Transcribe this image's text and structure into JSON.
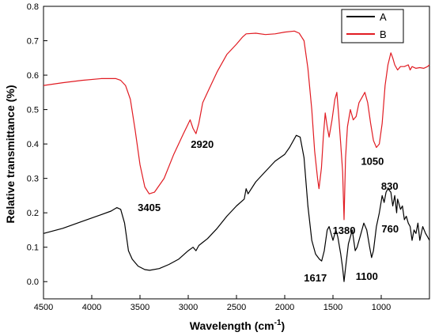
{
  "chart_data": {
    "type": "line",
    "title": "",
    "xlabel": "Wavelength (cm",
    "xlabel_sup": "-1",
    "xlabel_close": ")",
    "ylabel": "Relative transmittance (%)",
    "xlim": [
      4500,
      500
    ],
    "ylim": [
      -0.05,
      0.8
    ],
    "x_ticks": [
      {
        "value": 4500,
        "label": "4500"
      },
      {
        "value": 4000,
        "label": "4000"
      },
      {
        "value": 3500,
        "label": "3500"
      },
      {
        "value": 3000,
        "label": "3000"
      },
      {
        "value": 2500,
        "label": "2500"
      },
      {
        "value": 2000,
        "label": "2000"
      },
      {
        "value": 1500,
        "label": "1500"
      },
      {
        "value": 1000,
        "label": "1000"
      }
    ],
    "y_ticks": [
      {
        "value": 0.0,
        "label": "0.0"
      },
      {
        "value": 0.1,
        "label": "0.1"
      },
      {
        "value": 0.2,
        "label": "0.2"
      },
      {
        "value": 0.3,
        "label": "0.3"
      },
      {
        "value": 0.4,
        "label": "0.4"
      },
      {
        "value": 0.5,
        "label": "0.5"
      },
      {
        "value": 0.6,
        "label": "0.6"
      },
      {
        "value": 0.7,
        "label": "0.7"
      },
      {
        "value": 0.8,
        "label": "0.8"
      }
    ],
    "grid": false,
    "legend_position": "top-right",
    "series": [
      {
        "name": "A",
        "color": "#000000",
        "points": [
          [
            4500,
            0.14
          ],
          [
            4300,
            0.155
          ],
          [
            4100,
            0.175
          ],
          [
            3900,
            0.195
          ],
          [
            3800,
            0.205
          ],
          [
            3740,
            0.215
          ],
          [
            3700,
            0.21
          ],
          [
            3660,
            0.17
          ],
          [
            3620,
            0.09
          ],
          [
            3580,
            0.065
          ],
          [
            3520,
            0.045
          ],
          [
            3450,
            0.035
          ],
          [
            3400,
            0.033
          ],
          [
            3300,
            0.038
          ],
          [
            3200,
            0.05
          ],
          [
            3100,
            0.065
          ],
          [
            3000,
            0.09
          ],
          [
            2950,
            0.1
          ],
          [
            2920,
            0.09
          ],
          [
            2890,
            0.105
          ],
          [
            2800,
            0.125
          ],
          [
            2700,
            0.155
          ],
          [
            2600,
            0.19
          ],
          [
            2500,
            0.22
          ],
          [
            2420,
            0.24
          ],
          [
            2400,
            0.27
          ],
          [
            2380,
            0.255
          ],
          [
            2300,
            0.29
          ],
          [
            2200,
            0.32
          ],
          [
            2100,
            0.35
          ],
          [
            2000,
            0.37
          ],
          [
            1950,
            0.39
          ],
          [
            1880,
            0.425
          ],
          [
            1840,
            0.42
          ],
          [
            1800,
            0.36
          ],
          [
            1760,
            0.22
          ],
          [
            1720,
            0.12
          ],
          [
            1680,
            0.08
          ],
          [
            1640,
            0.065
          ],
          [
            1617,
            0.06
          ],
          [
            1590,
            0.09
          ],
          [
            1560,
            0.15
          ],
          [
            1540,
            0.16
          ],
          [
            1500,
            0.12
          ],
          [
            1470,
            0.15
          ],
          [
            1450,
            0.13
          ],
          [
            1420,
            0.08
          ],
          [
            1400,
            0.04
          ],
          [
            1385,
            0.0
          ],
          [
            1370,
            0.04
          ],
          [
            1340,
            0.11
          ],
          [
            1320,
            0.13
          ],
          [
            1300,
            0.15
          ],
          [
            1270,
            0.09
          ],
          [
            1250,
            0.1
          ],
          [
            1210,
            0.14
          ],
          [
            1180,
            0.17
          ],
          [
            1150,
            0.15
          ],
          [
            1120,
            0.1
          ],
          [
            1100,
            0.07
          ],
          [
            1080,
            0.09
          ],
          [
            1050,
            0.16
          ],
          [
            1020,
            0.2
          ],
          [
            990,
            0.25
          ],
          [
            970,
            0.23
          ],
          [
            950,
            0.26
          ],
          [
            930,
            0.27
          ],
          [
            900,
            0.26
          ],
          [
            880,
            0.22
          ],
          [
            860,
            0.25
          ],
          [
            840,
            0.2
          ],
          [
            830,
            0.24
          ],
          [
            800,
            0.21
          ],
          [
            780,
            0.22
          ],
          [
            760,
            0.18
          ],
          [
            740,
            0.19
          ],
          [
            720,
            0.17
          ],
          [
            700,
            0.16
          ],
          [
            680,
            0.12
          ],
          [
            660,
            0.15
          ],
          [
            640,
            0.14
          ],
          [
            620,
            0.17
          ],
          [
            600,
            0.12
          ],
          [
            570,
            0.16
          ],
          [
            540,
            0.14
          ],
          [
            520,
            0.13
          ],
          [
            500,
            0.12
          ]
        ]
      },
      {
        "name": "B",
        "color": "#e11b22",
        "points": [
          [
            4500,
            0.57
          ],
          [
            4300,
            0.578
          ],
          [
            4100,
            0.585
          ],
          [
            3900,
            0.59
          ],
          [
            3750,
            0.59
          ],
          [
            3700,
            0.585
          ],
          [
            3650,
            0.57
          ],
          [
            3600,
            0.53
          ],
          [
            3550,
            0.44
          ],
          [
            3500,
            0.34
          ],
          [
            3450,
            0.275
          ],
          [
            3405,
            0.255
          ],
          [
            3350,
            0.26
          ],
          [
            3250,
            0.3
          ],
          [
            3150,
            0.37
          ],
          [
            3050,
            0.43
          ],
          [
            2980,
            0.47
          ],
          [
            2950,
            0.445
          ],
          [
            2920,
            0.43
          ],
          [
            2890,
            0.46
          ],
          [
            2850,
            0.52
          ],
          [
            2800,
            0.55
          ],
          [
            2700,
            0.61
          ],
          [
            2600,
            0.66
          ],
          [
            2500,
            0.69
          ],
          [
            2440,
            0.71
          ],
          [
            2400,
            0.72
          ],
          [
            2300,
            0.722
          ],
          [
            2200,
            0.718
          ],
          [
            2100,
            0.72
          ],
          [
            2000,
            0.725
          ],
          [
            1900,
            0.728
          ],
          [
            1850,
            0.722
          ],
          [
            1800,
            0.7
          ],
          [
            1760,
            0.62
          ],
          [
            1720,
            0.5
          ],
          [
            1690,
            0.38
          ],
          [
            1660,
            0.3
          ],
          [
            1645,
            0.27
          ],
          [
            1620,
            0.33
          ],
          [
            1600,
            0.42
          ],
          [
            1580,
            0.49
          ],
          [
            1560,
            0.45
          ],
          [
            1540,
            0.42
          ],
          [
            1510,
            0.47
          ],
          [
            1480,
            0.53
          ],
          [
            1460,
            0.55
          ],
          [
            1440,
            0.48
          ],
          [
            1420,
            0.4
          ],
          [
            1400,
            0.32
          ],
          [
            1385,
            0.18
          ],
          [
            1370,
            0.36
          ],
          [
            1350,
            0.45
          ],
          [
            1320,
            0.5
          ],
          [
            1290,
            0.47
          ],
          [
            1260,
            0.48
          ],
          [
            1230,
            0.52
          ],
          [
            1200,
            0.535
          ],
          [
            1170,
            0.55
          ],
          [
            1140,
            0.52
          ],
          [
            1110,
            0.46
          ],
          [
            1080,
            0.41
          ],
          [
            1050,
            0.39
          ],
          [
            1020,
            0.4
          ],
          [
            990,
            0.46
          ],
          [
            960,
            0.57
          ],
          [
            930,
            0.63
          ],
          [
            900,
            0.665
          ],
          [
            880,
            0.65
          ],
          [
            860,
            0.63
          ],
          [
            830,
            0.615
          ],
          [
            800,
            0.625
          ],
          [
            760,
            0.625
          ],
          [
            720,
            0.63
          ],
          [
            700,
            0.615
          ],
          [
            680,
            0.625
          ],
          [
            640,
            0.62
          ],
          [
            600,
            0.622
          ],
          [
            560,
            0.62
          ],
          [
            520,
            0.625
          ],
          [
            500,
            0.63
          ]
        ]
      }
    ],
    "annotations": [
      {
        "text": "3405",
        "x": 3405,
        "y": 0.255,
        "series": "B"
      },
      {
        "text": "2920",
        "x": 2920,
        "y": 0.43,
        "series": "B"
      },
      {
        "text": "1050",
        "x": 1050,
        "y": 0.39,
        "series": "B"
      },
      {
        "text": "1380",
        "x": 1385,
        "y": 0.18,
        "series": "B"
      },
      {
        "text": "1617",
        "x": 1617,
        "y": 0.06,
        "series": "A"
      },
      {
        "text": "1100",
        "x": 1100,
        "y": 0.07,
        "series": "A"
      },
      {
        "text": "830",
        "x": 830,
        "y": 0.24,
        "series": "A"
      },
      {
        "text": "760",
        "x": 760,
        "y": 0.18,
        "series": "A"
      }
    ]
  }
}
